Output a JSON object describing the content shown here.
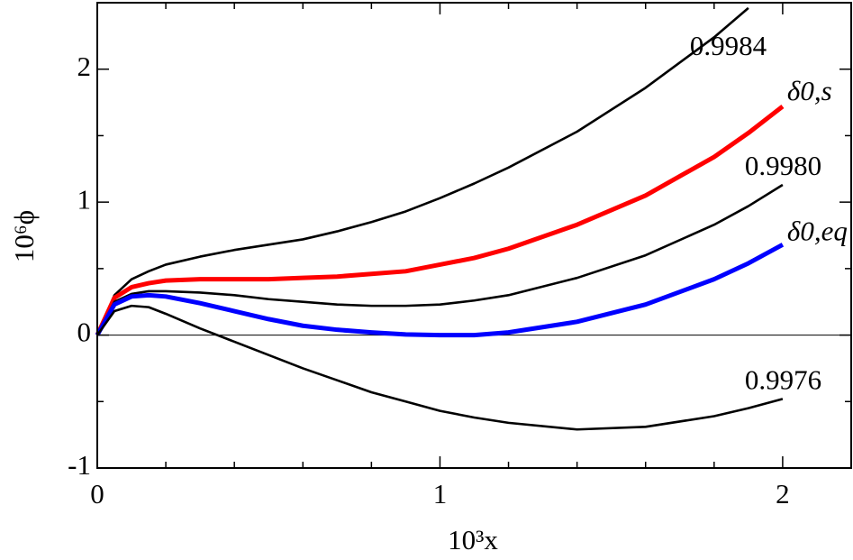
{
  "chart_data": {
    "type": "line",
    "x_label": "10³x",
    "y_label": "10⁶ϕ",
    "x": [
      0,
      0.05,
      0.1,
      0.15,
      0.2,
      0.3,
      0.4,
      0.5,
      0.6,
      0.7,
      0.8,
      0.9,
      1.0,
      1.1,
      1.2,
      1.4,
      1.6,
      1.8,
      1.9,
      2.0
    ],
    "series": [
      {
        "name": "0.9984",
        "color": "#000000",
        "values": [
          0,
          0.3,
          0.42,
          0.48,
          0.53,
          0.59,
          0.64,
          0.68,
          0.72,
          0.78,
          0.85,
          0.93,
          1.03,
          1.14,
          1.26,
          1.53,
          1.86,
          2.24,
          2.46,
          null
        ]
      },
      {
        "name": "δ0,s",
        "color": "#ff0000",
        "values": [
          0,
          0.28,
          0.36,
          0.39,
          0.41,
          0.42,
          0.42,
          0.42,
          0.43,
          0.44,
          0.46,
          0.48,
          0.53,
          0.58,
          0.65,
          0.83,
          1.05,
          1.34,
          1.52,
          1.72
        ]
      },
      {
        "name": "0.9980",
        "color": "#000000",
        "values": [
          0,
          0.25,
          0.31,
          0.33,
          0.33,
          0.32,
          0.3,
          0.27,
          0.25,
          0.23,
          0.22,
          0.22,
          0.23,
          0.26,
          0.3,
          0.43,
          0.6,
          0.83,
          0.97,
          1.13
        ]
      },
      {
        "name": "δ0,eq",
        "color": "#0000ff",
        "values": [
          0,
          0.23,
          0.29,
          0.3,
          0.29,
          0.24,
          0.18,
          0.12,
          0.07,
          0.04,
          0.02,
          0.005,
          0,
          0,
          0.02,
          0.1,
          0.23,
          0.42,
          0.54,
          0.68
        ]
      },
      {
        "name": "0.9976",
        "color": "#000000",
        "values": [
          0,
          0.18,
          0.22,
          0.21,
          0.16,
          0.05,
          -0.05,
          -0.15,
          -0.25,
          -0.34,
          -0.43,
          -0.5,
          -0.57,
          -0.62,
          -0.66,
          -0.71,
          -0.69,
          -0.61,
          -0.55,
          -0.48
        ]
      }
    ],
    "xlim": [
      0,
      2.2
    ],
    "ylim": [
      -1,
      2.5
    ],
    "xticks": [
      0,
      1,
      2
    ],
    "yticks": [
      -1,
      0,
      1,
      2
    ],
    "xminorticks": [
      0.2,
      0.4,
      0.6,
      0.8,
      1.2,
      1.4,
      1.6,
      1.8,
      2.2
    ],
    "yminorticks": [
      -0.5,
      0.5,
      1.5,
      2.5
    ],
    "zero_line": true,
    "grid": false
  }
}
